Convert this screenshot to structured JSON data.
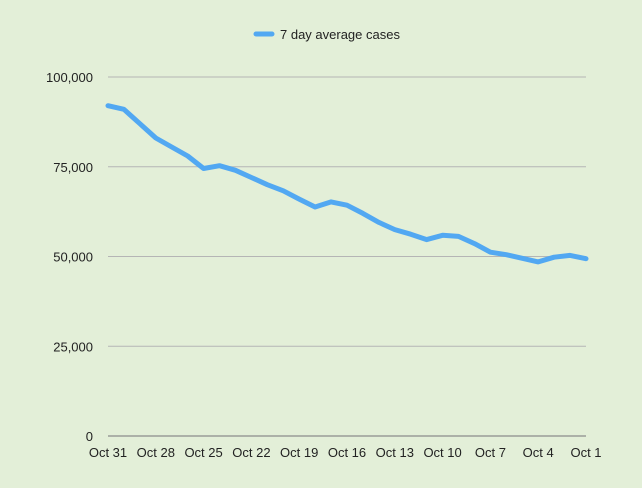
{
  "chart_data": {
    "type": "line",
    "title": "",
    "xlabel": "",
    "ylabel": "",
    "ylim": [
      0,
      100000
    ],
    "yticks": [
      {
        "value": 0,
        "label": "0"
      },
      {
        "value": 25000,
        "label": "25,000"
      },
      {
        "value": 50000,
        "label": "50,000"
      },
      {
        "value": 75000,
        "label": "75,000"
      },
      {
        "value": 100000,
        "label": "100,000"
      }
    ],
    "grid": true,
    "legend_position": "top-center",
    "categories": [
      "Oct 31",
      "Oct 30",
      "Oct 29",
      "Oct 28",
      "Oct 27",
      "Oct 26",
      "Oct 25",
      "Oct 24",
      "Oct 23",
      "Oct 22",
      "Oct 21",
      "Oct 20",
      "Oct 19",
      "Oct 18",
      "Oct 17",
      "Oct 16",
      "Oct 15",
      "Oct 14",
      "Oct 13",
      "Oct 12",
      "Oct 11",
      "Oct 10",
      "Oct 9",
      "Oct 8",
      "Oct 7",
      "Oct 6",
      "Oct 5",
      "Oct 4",
      "Oct 3",
      "Oct 2",
      "Oct 1"
    ],
    "xtick_labels": [
      "Oct 31",
      "Oct 28",
      "Oct 25",
      "Oct 22",
      "Oct 19",
      "Oct 16",
      "Oct 13",
      "Oct 10",
      "Oct 7",
      "Oct 4",
      "Oct 1"
    ],
    "series": [
      {
        "name": "7 day average  cases",
        "color": "#52a8f2",
        "values": [
          92000,
          91000,
          87000,
          83000,
          80500,
          78000,
          74500,
          75300,
          74000,
          72000,
          70000,
          68300,
          66000,
          63800,
          65200,
          64300,
          62000,
          59500,
          57500,
          56200,
          54700,
          55900,
          55600,
          53600,
          51200,
          50500,
          49500,
          48500,
          49800,
          50300,
          49400
        ]
      }
    ]
  }
}
